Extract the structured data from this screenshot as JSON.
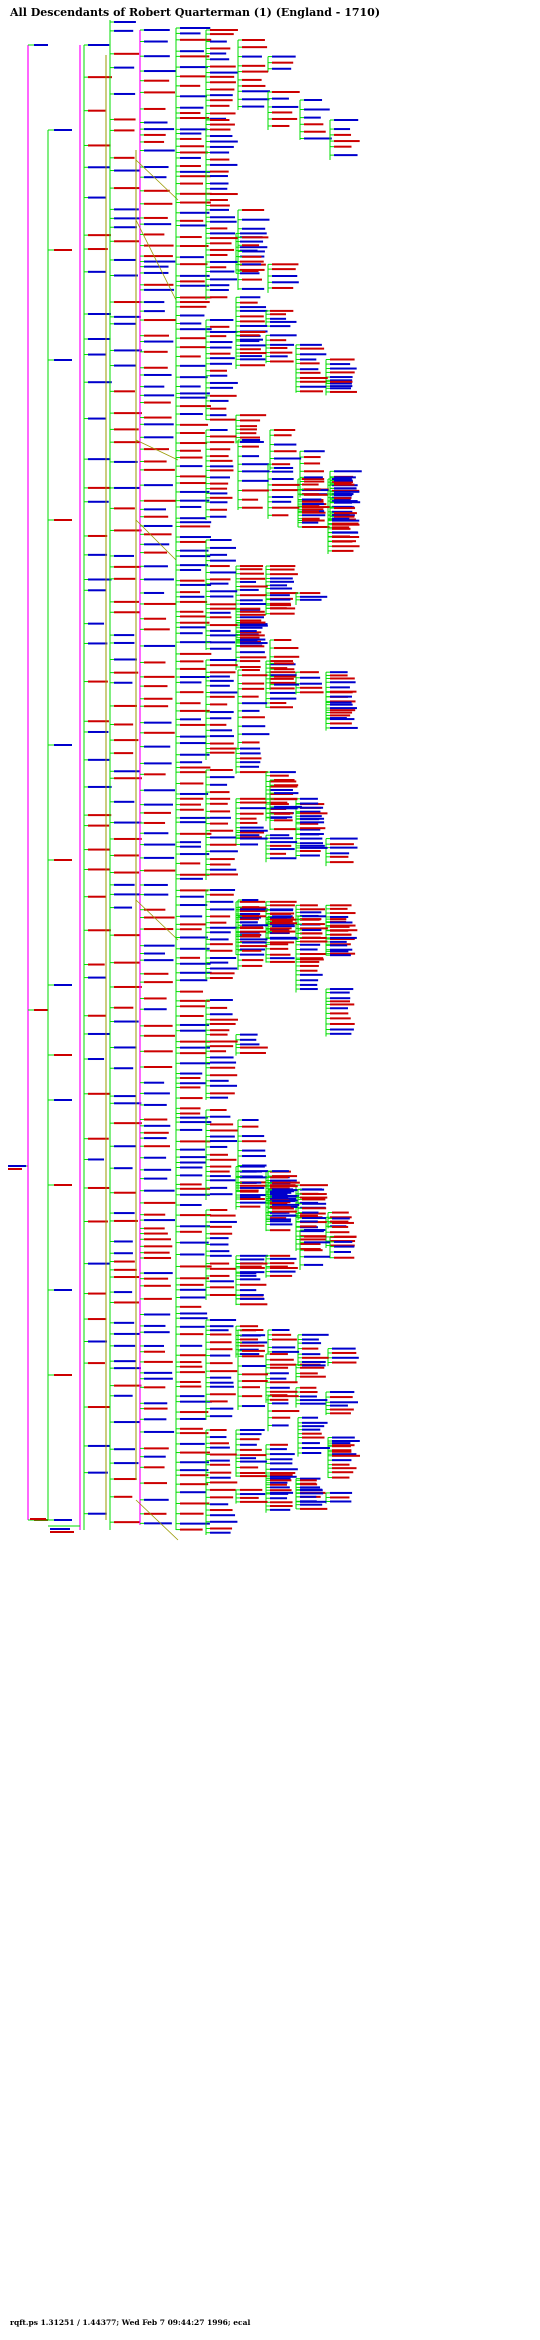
{
  "chart_title": "All Descendants of Robert Quarterman (1) (England - 1710)",
  "footer": "rqft.ps  1.31251 / 1.44377; Wed Feb  7 09:44:27 1996; ecal",
  "colors": {
    "male": "#0000cc",
    "female": "#cc0000",
    "edge_green": "#00dd00",
    "edge_magenta": "#ff00ff",
    "edge_olive": "#999900",
    "background": "#ffffff"
  }
}
